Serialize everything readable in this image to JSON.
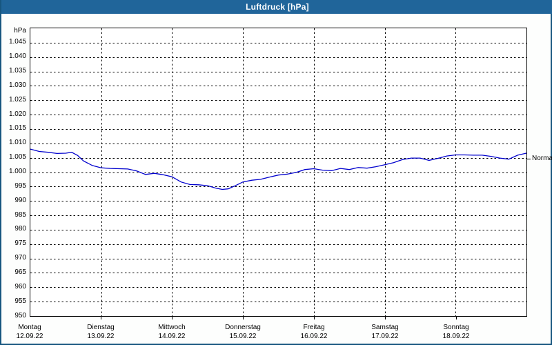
{
  "window": {
    "title": "Luftdruck [hPa]"
  },
  "colors": {
    "titlebar_background": "#20659a",
    "window_border": "#17567f",
    "plot_background": "#ffffff",
    "grid_color": "#000000",
    "line_color": "#0000cd",
    "title_text": "#ffffff"
  },
  "chart_data": {
    "type": "line",
    "title": "Luftdruck [hPa]",
    "unit_label": "hPa",
    "ylim": [
      950,
      1050
    ],
    "grid": "dashed",
    "y_ticks": [
      {
        "value": 1045,
        "label": "1.045"
      },
      {
        "value": 1040,
        "label": "1.040"
      },
      {
        "value": 1035,
        "label": "1.035"
      },
      {
        "value": 1030,
        "label": "1.030"
      },
      {
        "value": 1025,
        "label": "1.025"
      },
      {
        "value": 1020,
        "label": "1.020"
      },
      {
        "value": 1015,
        "label": "1.015"
      },
      {
        "value": 1010,
        "label": "1.010"
      },
      {
        "value": 1005,
        "label": "1.005"
      },
      {
        "value": 1000,
        "label": "1.000"
      },
      {
        "value": 995,
        "label": "995"
      },
      {
        "value": 990,
        "label": "990"
      },
      {
        "value": 985,
        "label": "985"
      },
      {
        "value": 980,
        "label": "980"
      },
      {
        "value": 975,
        "label": "975"
      },
      {
        "value": 970,
        "label": "970"
      },
      {
        "value": 965,
        "label": "965"
      },
      {
        "value": 960,
        "label": "960"
      },
      {
        "value": 955,
        "label": "955"
      },
      {
        "value": 950,
        "label": "950"
      }
    ],
    "x_days": [
      {
        "name": "Montag",
        "date": "12.09.22"
      },
      {
        "name": "Dienstag",
        "date": "13.09.22"
      },
      {
        "name": "Mittwoch",
        "date": "14.09.22"
      },
      {
        "name": "Donnerstag",
        "date": "15.09.22"
      },
      {
        "name": "Freitag",
        "date": "16.09.22"
      },
      {
        "name": "Samstag",
        "date": "17.09.22"
      },
      {
        "name": "Sonntag",
        "date": "18.09.22"
      }
    ],
    "x_range_hours": [
      0,
      168
    ],
    "normal_marker": {
      "label": "Normal",
      "value": 1004.5
    },
    "series": [
      {
        "name": "Luftdruck",
        "points_hour_hpa": [
          [
            0,
            1008.0
          ],
          [
            3,
            1007.2
          ],
          [
            6,
            1006.9
          ],
          [
            9,
            1006.5
          ],
          [
            12,
            1006.6
          ],
          [
            14,
            1006.9
          ],
          [
            16,
            1005.8
          ],
          [
            18,
            1003.9
          ],
          [
            21,
            1002.3
          ],
          [
            24,
            1001.5
          ],
          [
            27,
            1001.3
          ],
          [
            30,
            1001.2
          ],
          [
            33,
            1001.1
          ],
          [
            36,
            1000.4
          ],
          [
            39,
            999.2
          ],
          [
            42,
            999.6
          ],
          [
            45,
            999.1
          ],
          [
            48,
            998.4
          ],
          [
            51,
            996.6
          ],
          [
            54,
            995.7
          ],
          [
            57,
            995.6
          ],
          [
            60,
            995.3
          ],
          [
            63,
            994.4
          ],
          [
            65,
            994.0
          ],
          [
            67,
            994.2
          ],
          [
            69,
            995.1
          ],
          [
            72,
            996.6
          ],
          [
            75,
            997.2
          ],
          [
            78,
            997.5
          ],
          [
            81,
            998.3
          ],
          [
            84,
            999.0
          ],
          [
            87,
            999.3
          ],
          [
            90,
            999.9
          ],
          [
            93,
            1000.9
          ],
          [
            96,
            1001.2
          ],
          [
            99,
            1000.7
          ],
          [
            102,
            1000.5
          ],
          [
            105,
            1001.3
          ],
          [
            108,
            1000.9
          ],
          [
            111,
            1001.6
          ],
          [
            114,
            1001.4
          ],
          [
            117,
            1001.9
          ],
          [
            120,
            1002.6
          ],
          [
            123,
            1003.3
          ],
          [
            126,
            1004.4
          ],
          [
            129,
            1004.9
          ],
          [
            132,
            1004.9
          ],
          [
            135,
            1004.1
          ],
          [
            138,
            1004.8
          ],
          [
            141,
            1005.6
          ],
          [
            144,
            1006.0
          ],
          [
            147,
            1006.0
          ],
          [
            150,
            1005.9
          ],
          [
            153,
            1005.9
          ],
          [
            156,
            1005.5
          ],
          [
            159,
            1004.9
          ],
          [
            162,
            1004.5
          ],
          [
            165,
            1005.9
          ],
          [
            168,
            1006.6
          ]
        ]
      }
    ]
  }
}
